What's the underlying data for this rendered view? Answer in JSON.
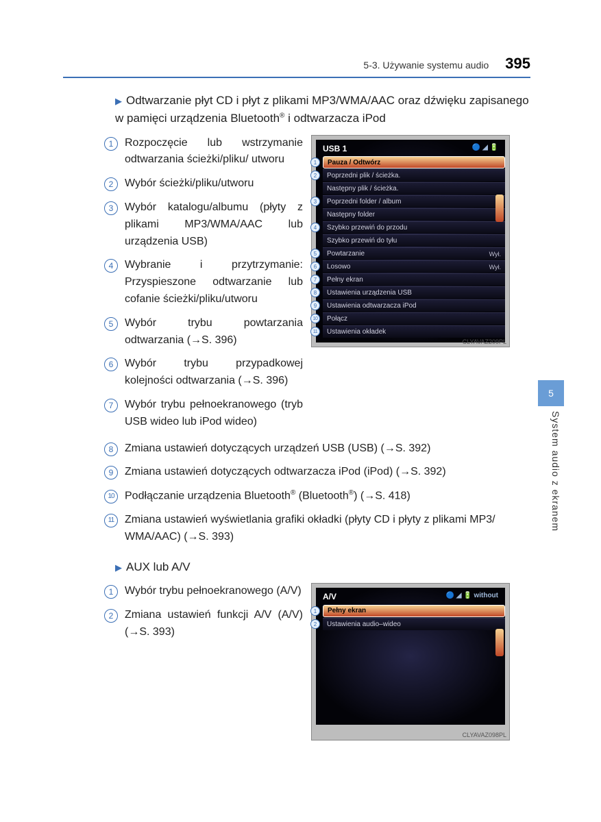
{
  "header": {
    "section": "5-3. Używanie systemu audio",
    "page_number": "395"
  },
  "side": {
    "chapter_number": "5",
    "chapter_title": "System audio z ekranem"
  },
  "section_a": {
    "title_pre": "Odtwarzanie płyt CD i płyt z plikami MP3/WMA/AAC oraz dźwięku zapisanego w pamięci urządzenia Bluetooth",
    "title_post": " i odtwarzacza iPod",
    "items": [
      {
        "n": "1",
        "text": "Rozpoczęcie lub wstrzymanie odtwarzania ścieżki/pliku/ utworu"
      },
      {
        "n": "2",
        "text": "Wybór ścieżki/pliku/utworu"
      },
      {
        "n": "3",
        "text": "Wybór katalogu/albumu (płyty z plikami MP3/WMA/AAC lub urządzenia USB)"
      },
      {
        "n": "4",
        "text": "Wybranie i przytrzymanie: Przyspieszone odtwarzanie lub cofanie ścieżki/pliku/utworu"
      },
      {
        "n": "5",
        "text": "Wybór trybu powtarzania odtwarzania (→S. 396)"
      },
      {
        "n": "6",
        "text": "Wybór trybu przypadkowej kolejności odtwarzania (→S. 396)"
      },
      {
        "n": "7",
        "text": "Wybór trybu pełnoekranowego (tryb USB wideo lub iPod wideo)"
      }
    ],
    "items_full": [
      {
        "n": "8",
        "text": "Zmiana ustawień dotyczących urządzeń USB (USB) (→S. 392)"
      },
      {
        "n": "9",
        "text": "Zmiana ustawień dotyczących odtwarzacza iPod (iPod) (→S. 392)"
      },
      {
        "n": "10",
        "text_pre": "Podłączanie urządzenia Bluetooth",
        "text_mid": " (Bluetooth",
        "text_post": ") (→S. 418)"
      },
      {
        "n": "11",
        "text": "Zmiana ustawień wyświetlania grafiki okładki (płyty CD i płyty z plikami MP3/ WMA/AAC) (→S. 393)"
      }
    ],
    "screen": {
      "title": "USB 1",
      "ref": "CLYAVAZ209PL",
      "rows": [
        {
          "n": "1",
          "label": "Pauza / Odtwórz",
          "hi": true
        },
        {
          "n": "2",
          "label": "Poprzedni plik / ścieżka.",
          "sub": false
        },
        {
          "n": "",
          "label": "Następny plik / ścieżka."
        },
        {
          "n": "3",
          "label": "Poprzedni folder / album"
        },
        {
          "n": "",
          "label": "Następny folder"
        },
        {
          "n": "4",
          "label": "Szybko przewiń do przodu"
        },
        {
          "n": "",
          "label": "Szybko przewiń do tyłu"
        },
        {
          "n": "5",
          "label": "Powtarzanie",
          "val": "Wył."
        },
        {
          "n": "6",
          "label": "Losowo",
          "val": "Wył."
        },
        {
          "n": "7",
          "label": "Pełny ekran"
        },
        {
          "n": "8",
          "label": "Ustawienia urządzenia USB"
        },
        {
          "n": "9",
          "label": "Ustawienia odtwarzacza iPod"
        },
        {
          "n": "10",
          "label": "Połącz"
        },
        {
          "n": "11",
          "label": "Ustawienia okładek"
        }
      ]
    }
  },
  "section_b": {
    "title": "AUX lub A/V",
    "items": [
      {
        "n": "1",
        "text": "Wybór trybu pełnoekranowego (A/V)"
      },
      {
        "n": "2",
        "text": "Zmiana ustawień funkcji A/V (A/V) (→S. 393)"
      }
    ],
    "screen": {
      "title": "A/V",
      "ref": "CLYAVAZ098PL",
      "rows": [
        {
          "n": "1",
          "label": "Pełny ekran",
          "hi": true
        },
        {
          "n": "2",
          "label": "Ustawienia audio–wideo"
        }
      ]
    }
  },
  "colors": {
    "accent": "#3b6fb5",
    "highlight_start": "#f5d090",
    "highlight_end": "#c04828",
    "side_tab": "#6a9dd6"
  }
}
